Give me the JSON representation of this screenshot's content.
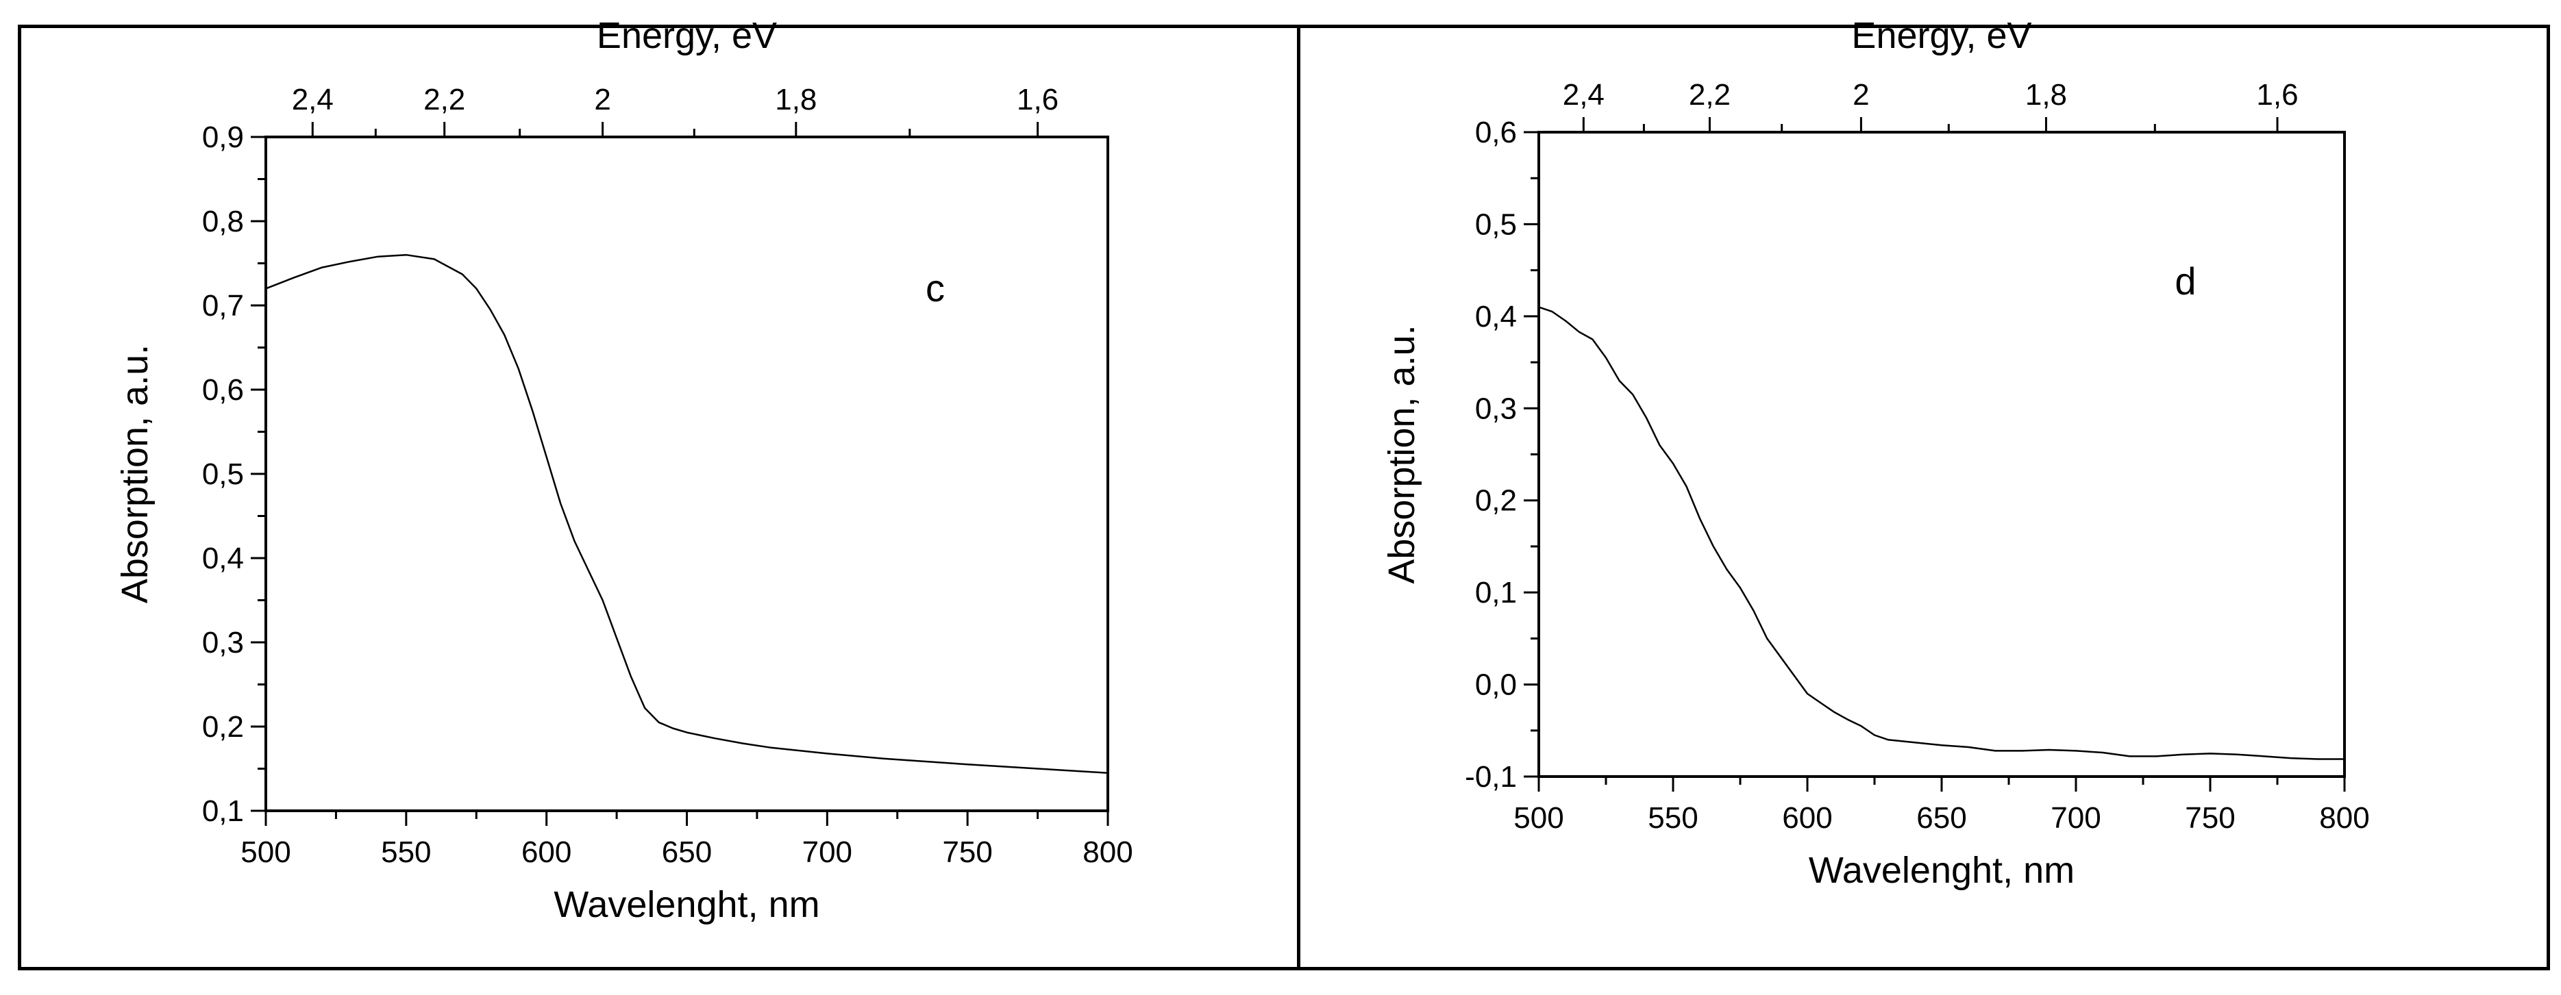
{
  "chart_data": [
    {
      "type": "line",
      "panel_label": "c",
      "xlabel": "Wavelenght, nm",
      "ylabel": "Absorption, a.u.",
      "top_axis_label": "Energy, eV",
      "xlim": [
        500,
        800
      ],
      "ylim": [
        0.1,
        0.9
      ],
      "x_ticks": [
        "500",
        "550",
        "600",
        "650",
        "700",
        "750",
        "800"
      ],
      "y_ticks": [
        "0,1",
        "0,2",
        "0,3",
        "0,4",
        "0,5",
        "0,6",
        "0,7",
        "0,8",
        "0,9"
      ],
      "top_ticks": [
        "2,4",
        "2,2",
        "2",
        "1,8",
        "1,6"
      ],
      "top_tick_values_ev": [
        2.4,
        2.2,
        2.0,
        1.8,
        1.6
      ],
      "series": [
        {
          "x": [
            500,
            510,
            520,
            530,
            540,
            550,
            560,
            570,
            575,
            580,
            585,
            590,
            595,
            600,
            605,
            610,
            615,
            620,
            625,
            630,
            635,
            640,
            645,
            650,
            660,
            670,
            680,
            700,
            720,
            750,
            780,
            800
          ],
          "y": [
            0.72,
            0.733,
            0.745,
            0.752,
            0.758,
            0.76,
            0.755,
            0.737,
            0.72,
            0.695,
            0.665,
            0.625,
            0.575,
            0.52,
            0.465,
            0.42,
            0.385,
            0.35,
            0.305,
            0.26,
            0.222,
            0.205,
            0.198,
            0.193,
            0.186,
            0.18,
            0.175,
            0.168,
            0.162,
            0.155,
            0.149,
            0.145
          ]
        }
      ]
    },
    {
      "type": "line",
      "panel_label": "d",
      "xlabel": "Wavelenght, nm",
      "ylabel": "Absorption, a.u.",
      "top_axis_label": "Energy, eV",
      "xlim": [
        500,
        800
      ],
      "ylim": [
        -0.1,
        0.6
      ],
      "x_ticks": [
        "500",
        "550",
        "600",
        "650",
        "700",
        "750",
        "800"
      ],
      "y_ticks": [
        "-0,1",
        "0,0",
        "0,1",
        "0,2",
        "0,3",
        "0,4",
        "0,5",
        "0,6"
      ],
      "top_ticks": [
        "2,4",
        "2,2",
        "2",
        "1,8",
        "1,6"
      ],
      "top_tick_values_ev": [
        2.4,
        2.2,
        2.0,
        1.8,
        1.6
      ],
      "series": [
        {
          "x": [
            500,
            505,
            510,
            515,
            520,
            525,
            530,
            535,
            540,
            545,
            550,
            555,
            560,
            565,
            570,
            575,
            580,
            585,
            590,
            595,
            600,
            605,
            610,
            615,
            620,
            625,
            630,
            640,
            650,
            660,
            670,
            680,
            690,
            700,
            710,
            720,
            730,
            740,
            750,
            760,
            770,
            780,
            790,
            800
          ],
          "y": [
            0.41,
            0.405,
            0.395,
            0.383,
            0.375,
            0.355,
            0.33,
            0.315,
            0.29,
            0.26,
            0.24,
            0.215,
            0.18,
            0.15,
            0.125,
            0.105,
            0.08,
            0.05,
            0.03,
            0.01,
            -0.01,
            -0.02,
            -0.03,
            -0.038,
            -0.045,
            -0.055,
            -0.06,
            -0.063,
            -0.066,
            -0.068,
            -0.072,
            -0.072,
            -0.071,
            -0.072,
            -0.074,
            -0.078,
            -0.078,
            -0.076,
            -0.075,
            -0.076,
            -0.078,
            -0.08,
            -0.081,
            -0.081
          ]
        }
      ]
    }
  ]
}
